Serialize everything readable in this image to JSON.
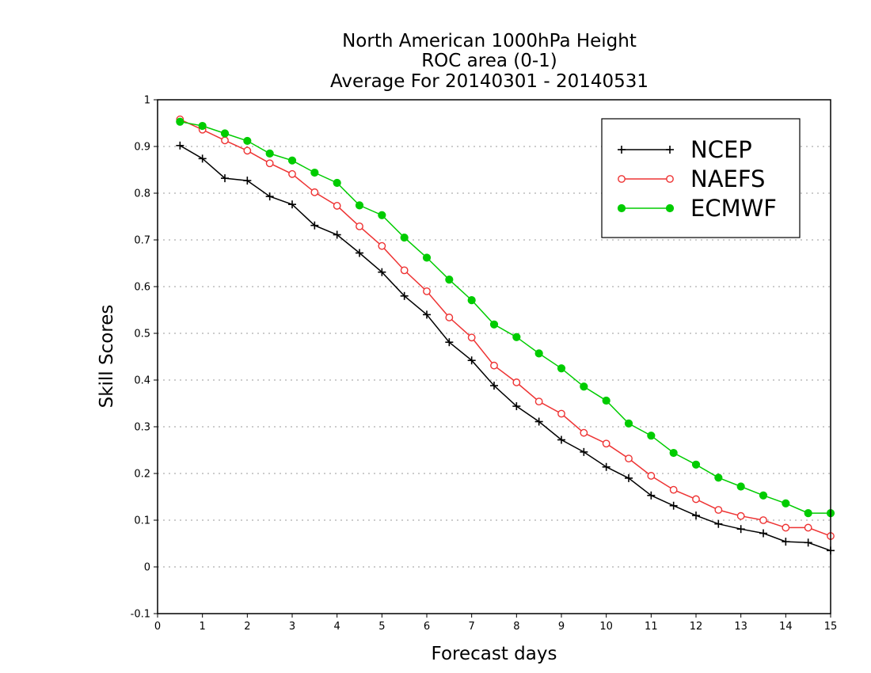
{
  "chart_data": {
    "type": "line",
    "title_lines": [
      "North American 1000hPa Height",
      "ROC area (0-1)",
      "Average For 20140301 - 20140531"
    ],
    "xlabel": "Forecast days",
    "ylabel": "Skill Scores",
    "xlim": [
      0,
      15
    ],
    "ylim": [
      -0.1,
      1
    ],
    "xticks": [
      0,
      1,
      2,
      3,
      4,
      5,
      6,
      7,
      8,
      9,
      10,
      11,
      12,
      13,
      14,
      15
    ],
    "xtick_labels": [
      "0",
      "1",
      "2",
      "3",
      "4",
      "5",
      "6",
      "7",
      "8",
      "9",
      "10",
      "11",
      "12",
      "13",
      "14",
      "15"
    ],
    "yticks": [
      -0.1,
      0,
      0.1,
      0.2,
      0.3,
      0.4,
      0.5,
      0.6,
      0.7,
      0.8,
      0.9,
      1
    ],
    "ytick_labels": [
      "-0.1",
      "0",
      "0.1",
      "0.2",
      "0.3",
      "0.4",
      "0.5",
      "0.6",
      "0.7",
      "0.8",
      "0.9",
      "1"
    ],
    "grid": "horizontal dotted",
    "legend_position": "top-right",
    "x": [
      0.5,
      1,
      1.5,
      2,
      2.5,
      3,
      3.5,
      4,
      4.5,
      5,
      5.5,
      6,
      6.5,
      7,
      7.5,
      8,
      8.5,
      9,
      9.5,
      10,
      10.5,
      11,
      11.5,
      12,
      12.5,
      13,
      13.5,
      14,
      14.5,
      15
    ],
    "series": [
      {
        "name": "NCEP",
        "color": "#000000",
        "marker": "plus",
        "values": [
          0.902,
          0.874,
          0.832,
          0.827,
          0.793,
          0.776,
          0.731,
          0.711,
          0.672,
          0.631,
          0.58,
          0.54,
          0.481,
          0.442,
          0.388,
          0.344,
          0.311,
          0.272,
          0.246,
          0.214,
          0.19,
          0.153,
          0.131,
          0.11,
          0.092,
          0.081,
          0.072,
          0.054,
          0.052,
          0.035
        ]
      },
      {
        "name": "NAEFS",
        "color": "#ee3333",
        "marker": "open-circle",
        "values": [
          0.958,
          0.936,
          0.913,
          0.891,
          0.864,
          0.841,
          0.802,
          0.773,
          0.729,
          0.687,
          0.635,
          0.59,
          0.534,
          0.491,
          0.431,
          0.395,
          0.354,
          0.328,
          0.287,
          0.264,
          0.232,
          0.195,
          0.165,
          0.145,
          0.122,
          0.109,
          0.1,
          0.084,
          0.084,
          0.066
        ]
      },
      {
        "name": "ECMWF",
        "color": "#00cc00",
        "marker": "filled-circle",
        "values": [
          0.953,
          0.944,
          0.928,
          0.912,
          0.885,
          0.87,
          0.844,
          0.822,
          0.774,
          0.753,
          0.705,
          0.662,
          0.615,
          0.571,
          0.519,
          0.492,
          0.457,
          0.425,
          0.386,
          0.356,
          0.307,
          0.281,
          0.244,
          0.219,
          0.191,
          0.172,
          0.153,
          0.136,
          0.115,
          0.115
        ]
      }
    ]
  }
}
